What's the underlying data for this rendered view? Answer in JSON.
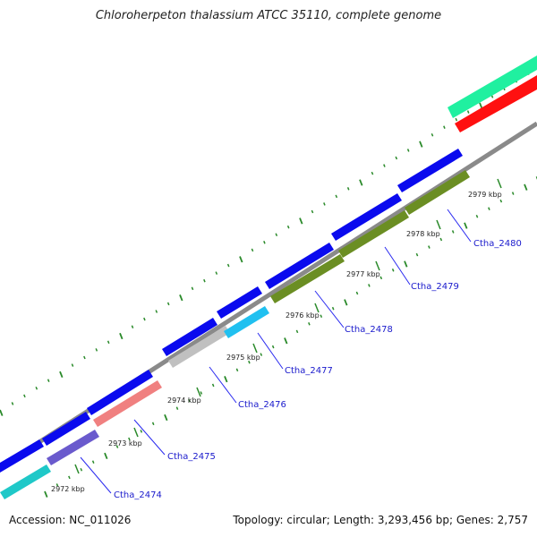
{
  "title": "Chloroherpeton thalassium ATCC 35110, complete genome",
  "accession_text": "Accession: NC_011026",
  "summary_text": "Topology: circular; Length: 3,293,456 bp; Genes: 2,757",
  "ticks": [
    "2972 kbp",
    "2973 kbp",
    "2974 kbp",
    "2975 kbp",
    "2976 kbp",
    "2977 kbp",
    "2978 kbp",
    "2979 kbp"
  ],
  "genes": [
    "Ctha_2474",
    "Ctha_2475",
    "Ctha_2476",
    "Ctha_2477",
    "Ctha_2478",
    "Ctha_2479",
    "Ctha_2480"
  ],
  "colors": {
    "blue": "#0a0aee",
    "cyan": "#1fc8c8",
    "purple": "#6a5acd",
    "salmon": "#f08080",
    "silver": "#c0c0c0",
    "skyblue": "#20c0f0",
    "olive": "#6b8e23",
    "spring": "#20f0a0",
    "red": "#ff1010",
    "backbone": "#888888",
    "tick": "#2a8a2a",
    "label": "#1a1acc"
  }
}
